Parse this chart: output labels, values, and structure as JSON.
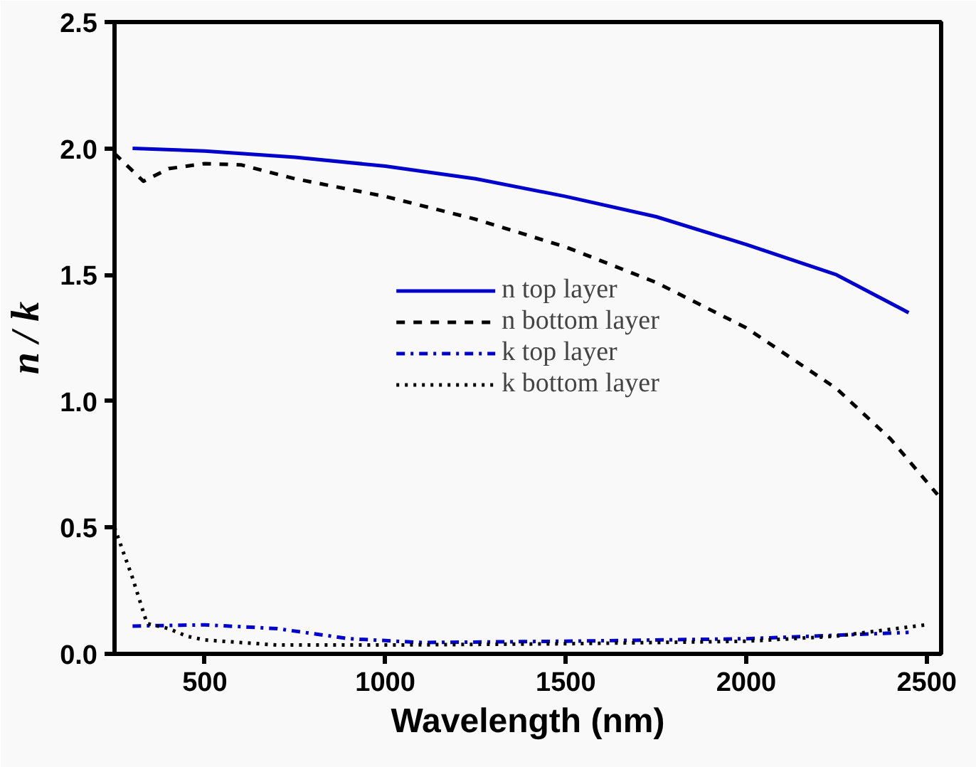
{
  "chart_data": {
    "type": "line",
    "xlabel": "Wavelength (nm)",
    "ylabel": "n / k",
    "xlim": [
      250,
      2540
    ],
    "ylim": [
      0,
      2.5
    ],
    "xticks": [
      500,
      1000,
      1500,
      2000,
      2500
    ],
    "yticks": [
      {
        "value": 0,
        "label": "0.0"
      },
      {
        "value": 0.5,
        "label": "0.5"
      },
      {
        "value": 1,
        "label": "1.0"
      },
      {
        "value": 1.5,
        "label": "1.5"
      },
      {
        "value": 2,
        "label": "2.0"
      },
      {
        "value": 2.5,
        "label": "2.5"
      }
    ],
    "grid": false,
    "legend": "center",
    "marker": "none",
    "series": [
      {
        "name": "n top layer",
        "color": "#0000cc",
        "line_style": "solid",
        "x": [
          300,
          500,
          750,
          1000,
          1250,
          1500,
          1750,
          2000,
          2250,
          2450
        ],
        "values": [
          2.0,
          1.99,
          1.965,
          1.93,
          1.88,
          1.81,
          1.73,
          1.62,
          1.5,
          1.35
        ]
      },
      {
        "name": "n bottom layer",
        "color": "#000000",
        "line_style": "dashed",
        "x": [
          250,
          330,
          400,
          500,
          600,
          750,
          1000,
          1250,
          1500,
          1750,
          2000,
          2250,
          2400,
          2530
        ],
        "values": [
          1.98,
          1.87,
          1.92,
          1.94,
          1.935,
          1.88,
          1.81,
          1.72,
          1.61,
          1.47,
          1.29,
          1.05,
          0.85,
          0.63
        ]
      },
      {
        "name": "k top layer",
        "color": "#0000cc",
        "line_style": "dashdot",
        "x": [
          300,
          500,
          700,
          900,
          1100,
          1500,
          2000,
          2450
        ],
        "values": [
          0.11,
          0.115,
          0.1,
          0.06,
          0.045,
          0.05,
          0.06,
          0.085
        ]
      },
      {
        "name": "k bottom layer",
        "color": "#000000",
        "line_style": "dotted",
        "x": [
          250,
          300,
          340,
          400,
          450,
          500,
          700,
          1000,
          1500,
          2000,
          2250,
          2500
        ],
        "values": [
          0.5,
          0.3,
          0.12,
          0.1,
          0.07,
          0.055,
          0.035,
          0.035,
          0.04,
          0.05,
          0.07,
          0.115
        ]
      }
    ]
  }
}
